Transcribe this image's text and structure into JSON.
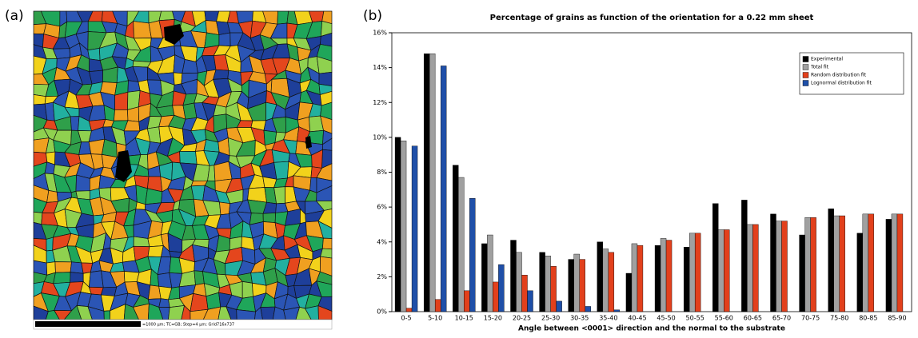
{
  "figure": {
    "panel_a_label": "(a)",
    "panel_b_label": "(b)",
    "scale_bar_text": "=1000 µm; TC=GB; Step=4 µm; Grid716x737"
  },
  "chart_data": {
    "type": "bar",
    "title": "Percentage of grains as function of the orientation for a 0.22 mm sheet",
    "x_label": "Angle between <0001> direction and the normal to the substrate",
    "categories": [
      "0-5",
      "5-10",
      "10-15",
      "15-20",
      "20-25",
      "25-30",
      "30-35",
      "35-40",
      "40-45",
      "45-50",
      "50-55",
      "55-60",
      "60-65",
      "65-70",
      "70-75",
      "75-80",
      "80-85",
      "85-90"
    ],
    "series": [
      {
        "name": "Experimental",
        "color": "#000000",
        "values": [
          10.0,
          14.8,
          8.4,
          3.9,
          4.1,
          3.4,
          3.0,
          4.0,
          2.2,
          3.8,
          3.7,
          6.2,
          6.4,
          5.6,
          4.4,
          5.9,
          4.5,
          5.3
        ]
      },
      {
        "name": "Total fit",
        "color": "#a0a0a0",
        "values": [
          9.8,
          14.8,
          7.7,
          4.4,
          3.4,
          3.2,
          3.3,
          3.6,
          3.9,
          4.2,
          4.5,
          4.7,
          5.0,
          5.2,
          5.4,
          5.5,
          5.6,
          5.6
        ]
      },
      {
        "name": "Random distribution fit",
        "color": "#e2401c",
        "values": [
          0.2,
          0.7,
          1.2,
          1.7,
          2.1,
          2.6,
          3.0,
          3.4,
          3.8,
          4.1,
          4.5,
          4.7,
          5.0,
          5.2,
          5.4,
          5.5,
          5.6,
          5.6
        ]
      },
      {
        "name": "Lognormal distribution fit",
        "color": "#1f4fa8",
        "values": [
          9.5,
          14.1,
          6.5,
          2.7,
          1.2,
          0.6,
          0.3,
          0.1,
          0.0,
          0,
          0,
          0,
          0,
          0,
          0,
          0,
          0,
          0
        ]
      }
    ],
    "ylim": [
      0,
      16
    ],
    "yticks": [
      {
        "value": 0,
        "label": "0%"
      },
      {
        "value": 2,
        "label": "2%"
      },
      {
        "value": 4,
        "label": "4%"
      },
      {
        "value": 6,
        "label": "6%"
      },
      {
        "value": 8,
        "label": "8%"
      },
      {
        "value": 10,
        "label": "10%"
      },
      {
        "value": 12,
        "label": "12%"
      },
      {
        "value": 14,
        "label": "14%"
      },
      {
        "value": 16,
        "label": "16%"
      }
    ],
    "legend": "upper right"
  }
}
